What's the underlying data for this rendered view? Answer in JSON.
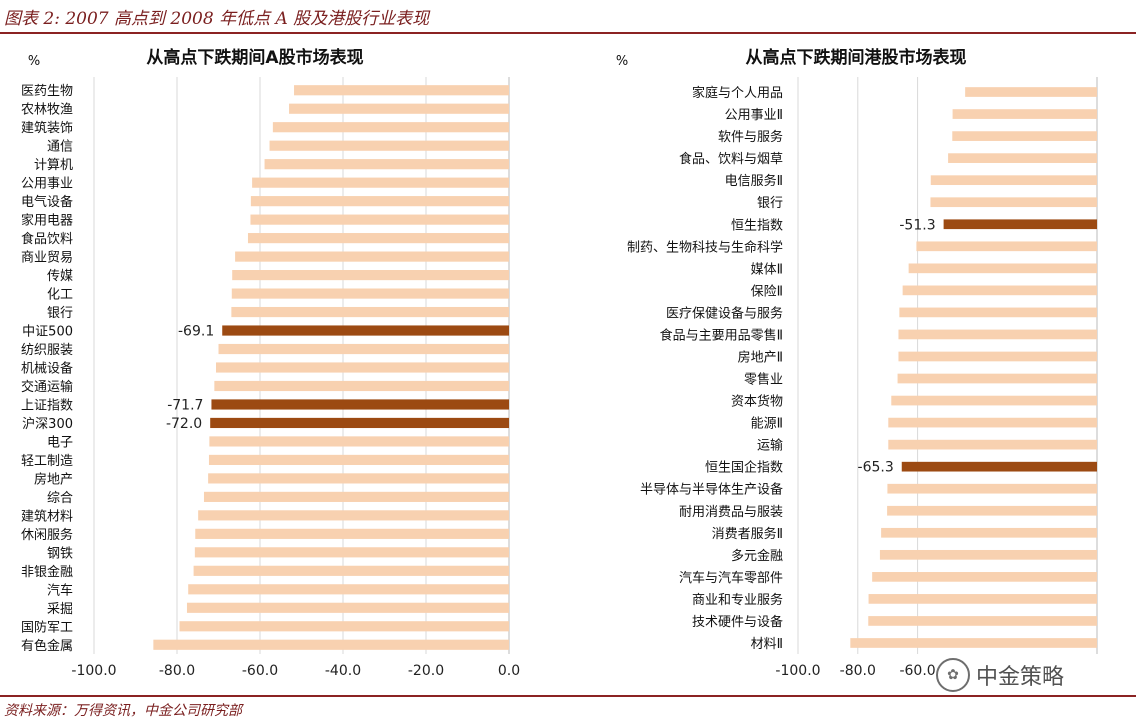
{
  "figure_title": "图表 2: 2007 高点到 2008 年低点 A 股及港股行业表现",
  "source": "资料来源：万得资讯，中金公司研究部",
  "watermark": {
    "text": "中金策略",
    "icon": "wechat-icon"
  },
  "colors": {
    "normal": "#f8d1b0",
    "highlight": "#9c4a12",
    "frame": "#8b2323",
    "grid": "#d9d9d9"
  },
  "chart_data": [
    {
      "type": "bar",
      "orientation": "horizontal",
      "title": "从高点下跌期间A股市场表现",
      "unit_label": "%",
      "xlim": [
        -100,
        0
      ],
      "xticks": [
        "-100.0",
        "-80.0",
        "-60.0",
        "-40.0",
        "-20.0",
        "0.0"
      ],
      "tick_values": [
        -100,
        -80,
        -60,
        -40,
        -20,
        0
      ],
      "categories": [
        "医药生物",
        "农林牧渔",
        "建筑装饰",
        "通信",
        "计算机",
        "公用事业",
        "电气设备",
        "家用电器",
        "食品饮料",
        "商业贸易",
        "传媒",
        "化工",
        "银行",
        "中证500",
        "纺织服装",
        "机械设备",
        "交通运输",
        "上证指数",
        "沪深300",
        "电子",
        "轻工制造",
        "房地产",
        "综合",
        "建筑材料",
        "休闲服务",
        "钢铁",
        "非银金融",
        "汽车",
        "采掘",
        "国防军工",
        "有色金属"
      ],
      "values": [
        -51.8,
        -53.0,
        -56.9,
        -57.7,
        -58.9,
        -61.9,
        -62.2,
        -62.3,
        -62.9,
        -66.0,
        -66.7,
        -66.8,
        -66.9,
        -69.1,
        -70.0,
        -70.6,
        -71.0,
        -71.7,
        -72.0,
        -72.2,
        -72.3,
        -72.5,
        -73.5,
        -74.9,
        -75.6,
        -75.7,
        -76.0,
        -77.3,
        -77.6,
        -79.4,
        -85.7
      ],
      "highlighted": [
        "中证500",
        "上证指数",
        "沪深300"
      ],
      "data_labels": {
        "中证500": "-69.1",
        "上证指数": "-71.7",
        "沪深300": "-72.0"
      }
    },
    {
      "type": "bar",
      "orientation": "horizontal",
      "title": "从高点下跌期间港股市场表现",
      "unit_label": "%",
      "xlim": [
        -100,
        0
      ],
      "xticks": [
        "-100.0",
        "-80.0",
        "-60.0"
      ],
      "tick_values": [
        -100,
        -80,
        -60
      ],
      "categories": [
        "家庭与个人用品",
        "公用事业Ⅱ",
        "软件与服务",
        "食品、饮料与烟草",
        "电信服务Ⅱ",
        "银行",
        "恒生指数",
        "制药、生物科技与生命科学",
        "媒体Ⅱ",
        "保险Ⅱ",
        "医疗保健设备与服务",
        "食品与主要用品零售Ⅱ",
        "房地产Ⅱ",
        "零售业",
        "资本货物",
        "能源Ⅱ",
        "运输",
        "恒生国企指数",
        "半导体与半导体生产设备",
        "耐用消费品与服装",
        "消费者服务Ⅱ",
        "多元金融",
        "汽车与汽车零部件",
        "商业和专业服务",
        "技术硬件与设备",
        "材料Ⅱ"
      ],
      "values": [
        -44.1,
        -48.3,
        -48.4,
        -49.8,
        -55.6,
        -55.7,
        -51.3,
        -60.4,
        -63.0,
        -65.0,
        -66.1,
        -66.4,
        -66.4,
        -66.7,
        -68.8,
        -69.8,
        -69.8,
        -65.3,
        -70.1,
        -70.2,
        -72.2,
        -72.6,
        -75.2,
        -76.4,
        -76.5,
        -82.5
      ],
      "highlighted": [
        "恒生指数",
        "恒生国企指数"
      ],
      "data_labels": {
        "恒生指数": "-51.3",
        "恒生国企指数": "-65.3"
      }
    }
  ]
}
